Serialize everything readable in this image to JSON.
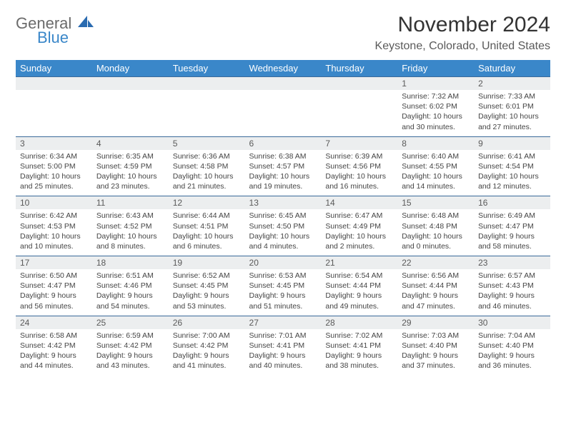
{
  "logo": {
    "general": "General",
    "blue": "Blue"
  },
  "title": "November 2024",
  "location": "Keystone, Colorado, United States",
  "colors": {
    "header_bg": "#3a87c9",
    "header_text": "#ffffff",
    "daynum_bg": "#eceeef",
    "border": "#3a6a9a",
    "page_bg": "#ffffff",
    "text": "#444444"
  },
  "day_names": [
    "Sunday",
    "Monday",
    "Tuesday",
    "Wednesday",
    "Thursday",
    "Friday",
    "Saturday"
  ],
  "weeks": [
    [
      null,
      null,
      null,
      null,
      null,
      {
        "n": "1",
        "sr": "Sunrise: 7:32 AM",
        "ss": "Sunset: 6:02 PM",
        "dl": "Daylight: 10 hours and 30 minutes."
      },
      {
        "n": "2",
        "sr": "Sunrise: 7:33 AM",
        "ss": "Sunset: 6:01 PM",
        "dl": "Daylight: 10 hours and 27 minutes."
      }
    ],
    [
      {
        "n": "3",
        "sr": "Sunrise: 6:34 AM",
        "ss": "Sunset: 5:00 PM",
        "dl": "Daylight: 10 hours and 25 minutes."
      },
      {
        "n": "4",
        "sr": "Sunrise: 6:35 AM",
        "ss": "Sunset: 4:59 PM",
        "dl": "Daylight: 10 hours and 23 minutes."
      },
      {
        "n": "5",
        "sr": "Sunrise: 6:36 AM",
        "ss": "Sunset: 4:58 PM",
        "dl": "Daylight: 10 hours and 21 minutes."
      },
      {
        "n": "6",
        "sr": "Sunrise: 6:38 AM",
        "ss": "Sunset: 4:57 PM",
        "dl": "Daylight: 10 hours and 19 minutes."
      },
      {
        "n": "7",
        "sr": "Sunrise: 6:39 AM",
        "ss": "Sunset: 4:56 PM",
        "dl": "Daylight: 10 hours and 16 minutes."
      },
      {
        "n": "8",
        "sr": "Sunrise: 6:40 AM",
        "ss": "Sunset: 4:55 PM",
        "dl": "Daylight: 10 hours and 14 minutes."
      },
      {
        "n": "9",
        "sr": "Sunrise: 6:41 AM",
        "ss": "Sunset: 4:54 PM",
        "dl": "Daylight: 10 hours and 12 minutes."
      }
    ],
    [
      {
        "n": "10",
        "sr": "Sunrise: 6:42 AM",
        "ss": "Sunset: 4:53 PM",
        "dl": "Daylight: 10 hours and 10 minutes."
      },
      {
        "n": "11",
        "sr": "Sunrise: 6:43 AM",
        "ss": "Sunset: 4:52 PM",
        "dl": "Daylight: 10 hours and 8 minutes."
      },
      {
        "n": "12",
        "sr": "Sunrise: 6:44 AM",
        "ss": "Sunset: 4:51 PM",
        "dl": "Daylight: 10 hours and 6 minutes."
      },
      {
        "n": "13",
        "sr": "Sunrise: 6:45 AM",
        "ss": "Sunset: 4:50 PM",
        "dl": "Daylight: 10 hours and 4 minutes."
      },
      {
        "n": "14",
        "sr": "Sunrise: 6:47 AM",
        "ss": "Sunset: 4:49 PM",
        "dl": "Daylight: 10 hours and 2 minutes."
      },
      {
        "n": "15",
        "sr": "Sunrise: 6:48 AM",
        "ss": "Sunset: 4:48 PM",
        "dl": "Daylight: 10 hours and 0 minutes."
      },
      {
        "n": "16",
        "sr": "Sunrise: 6:49 AM",
        "ss": "Sunset: 4:47 PM",
        "dl": "Daylight: 9 hours and 58 minutes."
      }
    ],
    [
      {
        "n": "17",
        "sr": "Sunrise: 6:50 AM",
        "ss": "Sunset: 4:47 PM",
        "dl": "Daylight: 9 hours and 56 minutes."
      },
      {
        "n": "18",
        "sr": "Sunrise: 6:51 AM",
        "ss": "Sunset: 4:46 PM",
        "dl": "Daylight: 9 hours and 54 minutes."
      },
      {
        "n": "19",
        "sr": "Sunrise: 6:52 AM",
        "ss": "Sunset: 4:45 PM",
        "dl": "Daylight: 9 hours and 53 minutes."
      },
      {
        "n": "20",
        "sr": "Sunrise: 6:53 AM",
        "ss": "Sunset: 4:45 PM",
        "dl": "Daylight: 9 hours and 51 minutes."
      },
      {
        "n": "21",
        "sr": "Sunrise: 6:54 AM",
        "ss": "Sunset: 4:44 PM",
        "dl": "Daylight: 9 hours and 49 minutes."
      },
      {
        "n": "22",
        "sr": "Sunrise: 6:56 AM",
        "ss": "Sunset: 4:44 PM",
        "dl": "Daylight: 9 hours and 47 minutes."
      },
      {
        "n": "23",
        "sr": "Sunrise: 6:57 AM",
        "ss": "Sunset: 4:43 PM",
        "dl": "Daylight: 9 hours and 46 minutes."
      }
    ],
    [
      {
        "n": "24",
        "sr": "Sunrise: 6:58 AM",
        "ss": "Sunset: 4:42 PM",
        "dl": "Daylight: 9 hours and 44 minutes."
      },
      {
        "n": "25",
        "sr": "Sunrise: 6:59 AM",
        "ss": "Sunset: 4:42 PM",
        "dl": "Daylight: 9 hours and 43 minutes."
      },
      {
        "n": "26",
        "sr": "Sunrise: 7:00 AM",
        "ss": "Sunset: 4:42 PM",
        "dl": "Daylight: 9 hours and 41 minutes."
      },
      {
        "n": "27",
        "sr": "Sunrise: 7:01 AM",
        "ss": "Sunset: 4:41 PM",
        "dl": "Daylight: 9 hours and 40 minutes."
      },
      {
        "n": "28",
        "sr": "Sunrise: 7:02 AM",
        "ss": "Sunset: 4:41 PM",
        "dl": "Daylight: 9 hours and 38 minutes."
      },
      {
        "n": "29",
        "sr": "Sunrise: 7:03 AM",
        "ss": "Sunset: 4:40 PM",
        "dl": "Daylight: 9 hours and 37 minutes."
      },
      {
        "n": "30",
        "sr": "Sunrise: 7:04 AM",
        "ss": "Sunset: 4:40 PM",
        "dl": "Daylight: 9 hours and 36 minutes."
      }
    ]
  ]
}
